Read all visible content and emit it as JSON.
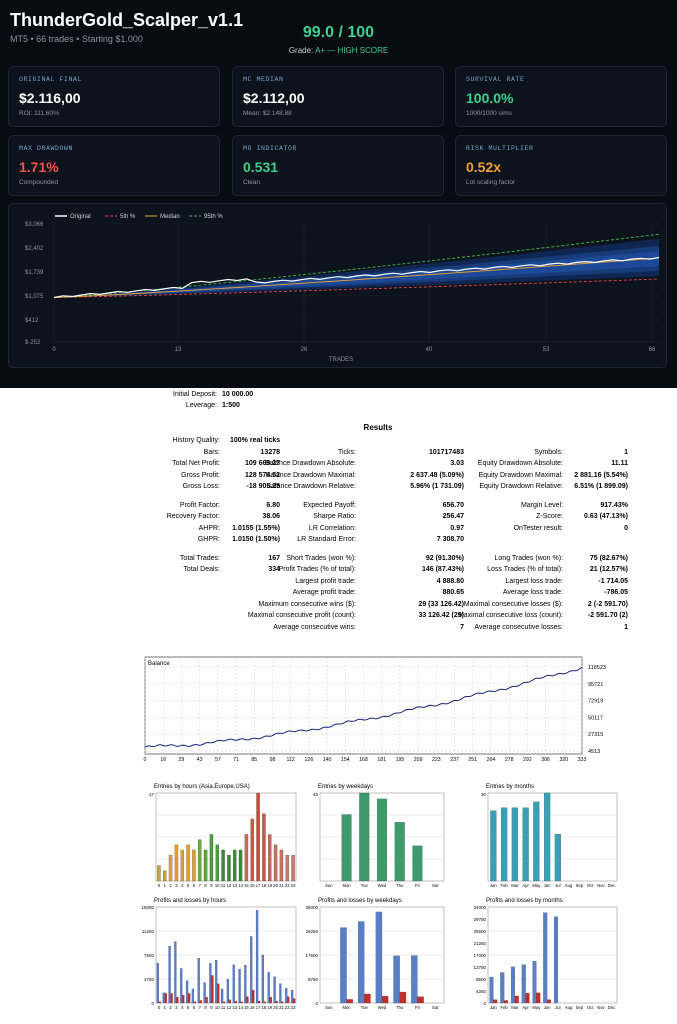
{
  "header": {
    "title": "ThunderGold_Scalper_v1.1",
    "subtitle": "MT5 • 66 trades • Starting $1.000",
    "score": "99.0 / 100",
    "grade_prefix": "Grade: ",
    "grade_value": "A+ — HIGH SCORE"
  },
  "cards": [
    {
      "label": "ORIGINAL FINAL",
      "value": "$2.116,00",
      "sub": "ROI: 111,60%",
      "color": "#ffffff"
    },
    {
      "label": "MC MEDIAN",
      "value": "$2.112,00",
      "sub": "Mean: $2.148,88",
      "color": "#ffffff"
    },
    {
      "label": "SURVIVAL RATE",
      "value": "100.0%",
      "sub": "1000/1000 sims",
      "color": "#3fcf8e"
    },
    {
      "label": "MAX DRAWDOWN",
      "value": "1.71%",
      "sub": "Compounded",
      "color": "#f85149"
    },
    {
      "label": "MG INDICATOR",
      "value": "0.531",
      "sub": "Clean",
      "color": "#3fcf8e"
    },
    {
      "label": "RISK MULTIPLIER",
      "value": "0.52x",
      "sub": "Lot scaling factor",
      "color": "#f0a030"
    }
  ],
  "mc_chart": {
    "legend": [
      "Original",
      "5th %",
      "Median",
      "95th %"
    ],
    "y_ticks": [
      "$3,066",
      "$2,402",
      "$1,739",
      "$1,075",
      "$412",
      "$-252"
    ],
    "x_ticks": [
      "0",
      "13",
      "26",
      "40",
      "53",
      "66"
    ],
    "xlabel": "TRADES",
    "colors": {
      "original": "#ffffff",
      "p5": "#e5484d",
      "median": "#f0a030",
      "p95": "#3fb950",
      "band": "#1f4e9e"
    }
  },
  "report": {
    "initial_deposit_label": "Initial Deposit:",
    "initial_deposit": "10 000.00",
    "leverage_label": "Leverage:",
    "leverage": "1:500",
    "results_title": "Results",
    "rows": [
      [
        "History Quality:",
        "100% real ticks",
        "",
        "",
        "",
        ""
      ],
      [
        "Bars:",
        "13278",
        "Ticks:",
        "101717483",
        "Symbols:",
        "1"
      ],
      [
        "Total Net Profit:",
        "109 669.27",
        "Balance Drawdown Absolute:",
        "3.03",
        "Equity Drawdown Absolute:",
        "11.11"
      ],
      [
        "Gross Profit:",
        "128 574.52",
        "Balance Drawdown Maximal:",
        "2 637.48 (5.09%)",
        "Equity Drawdown Maximal:",
        "2 881.16 (5.54%)"
      ],
      [
        "Gross Loss:",
        "-18 905.25",
        "Balance Drawdown Relative:",
        "5.96% (1 731.09)",
        "Equity Drawdown Relative:",
        "6.51% (1 899.09)"
      ],
      [
        "",
        "",
        "",
        "",
        "",
        ""
      ],
      [
        "Profit Factor:",
        "6.80",
        "Expected Payoff:",
        "656.70",
        "Margin Level:",
        "917.43%"
      ],
      [
        "Recovery Factor:",
        "38.06",
        "Sharpe Ratio:",
        "256.47",
        "Z-Score:",
        "0.63 (47.13%)"
      ],
      [
        "AHPR:",
        "1.0155 (1.55%)",
        "LR Correlation:",
        "0.97",
        "OnTester result:",
        "0"
      ],
      [
        "GHPR:",
        "1.0150 (1.50%)",
        "LR Standard Error:",
        "7 308.70",
        "",
        ""
      ],
      [
        "",
        "",
        "",
        "",
        "",
        ""
      ],
      [
        "Total Trades:",
        "167",
        "Short Trades (won %):",
        "92 (91.30%)",
        "Long Trades (won %):",
        "75 (82.67%)"
      ],
      [
        "Total Deals:",
        "334",
        "Profit Trades (% of total):",
        "146 (87.43%)",
        "Loss Trades (% of total):",
        "21 (12.57%)"
      ],
      [
        "",
        "",
        "Largest profit trade:",
        "4 888.80",
        "Largest loss trade:",
        "-1 714.05"
      ],
      [
        "",
        "",
        "Average profit trade:",
        "880.65",
        "Average loss trade:",
        "-786.05"
      ],
      [
        "",
        "",
        "Maximum consecutive wins ($):",
        "29 (33 126.42)",
        "Maximal consecutive losses ($):",
        "2 (-2 591.70)"
      ],
      [
        "",
        "",
        "Maximal consecutive profit (count):",
        "33 126.42 (29)",
        "Maximal consecutive loss (count):",
        "-2 591.70 (2)"
      ],
      [
        "",
        "",
        "Average consecutive wins:",
        "7",
        "Average consecutive losses:",
        "1"
      ]
    ]
  },
  "balance_chart": {
    "label": "Balance",
    "y_ticks": [
      "118523",
      "95721",
      "72919",
      "50117",
      "27315",
      "4513"
    ],
    "x_ticks": [
      "0",
      "16",
      "29",
      "43",
      "57",
      "71",
      "85",
      "98",
      "112",
      "126",
      "140",
      "154",
      "168",
      "181",
      "195",
      "209",
      "223",
      "237",
      "251",
      "264",
      "278",
      "292",
      "306",
      "320",
      "333"
    ]
  },
  "hist_charts": [
    {
      "title": "Entries by hours (Asia,Europe,USA)",
      "ymax_label": "17",
      "ticks": [
        "0",
        "1",
        "2",
        "3",
        "4",
        "5",
        "6",
        "7",
        "8",
        "9",
        "10",
        "11",
        "12",
        "13",
        "14",
        "15",
        "16",
        "17",
        "18",
        "19",
        "20",
        "21",
        "22",
        "23"
      ],
      "values": [
        3,
        2,
        5,
        7,
        6,
        7,
        6,
        8,
        6,
        9,
        7,
        6,
        5,
        6,
        6,
        9,
        12,
        17,
        13,
        9,
        7,
        6,
        5,
        5
      ]
    },
    {
      "title": "Entries by weekdays",
      "ymax_label": "45",
      "ticks": [
        "Sun",
        "Mon",
        "Tue",
        "Wed",
        "Thu",
        "Fri",
        "Sat"
      ],
      "values": [
        0,
        34,
        45,
        42,
        30,
        18,
        0
      ]
    },
    {
      "title": "Entries by months",
      "ymax_label": "30",
      "ticks": [
        "Jan",
        "Feb",
        "Mar",
        "Apr",
        "May",
        "Jun",
        "Jul",
        "Aug",
        "Sep",
        "Oct",
        "Nov",
        "Dec"
      ],
      "values": [
        24,
        25,
        25,
        25,
        27,
        30,
        16,
        0,
        0,
        0,
        0,
        0
      ]
    },
    {
      "title": "Profits and losses by hours",
      "ymax_label": "15000",
      "y_ticks": [
        "15000",
        "11250",
        "7500",
        "3750",
        "0"
      ],
      "ticks": [
        "0",
        "1",
        "2",
        "3",
        "4",
        "5",
        "6",
        "7",
        "8",
        "9",
        "10",
        "11",
        "12",
        "13",
        "14",
        "15",
        "16",
        "17",
        "18",
        "19",
        "20",
        "21",
        "22",
        "23"
      ],
      "profits": [
        6200,
        1600,
        8900,
        9600,
        5400,
        3500,
        2200,
        7000,
        3200,
        6200,
        6700,
        2200,
        3700,
        6000,
        5300,
        5900,
        10400,
        14500,
        7500,
        4800,
        4100,
        3000,
        2300,
        2000
      ],
      "losses": [
        200,
        1500,
        1500,
        900,
        1200,
        1500,
        200,
        400,
        900,
        4300,
        3000,
        200,
        500,
        300,
        200,
        1000,
        2000,
        300,
        200,
        900,
        300,
        200,
        1000,
        700
      ]
    },
    {
      "title": "Profits and losses by weekdays",
      "ymax_label": "35000",
      "y_ticks": [
        "35000",
        "26250",
        "17500",
        "8750",
        "0"
      ],
      "ticks": [
        "Sun",
        "Mon",
        "Tue",
        "Wed",
        "Thu",
        "Fri",
        "Sat"
      ],
      "profits": [
        0,
        27500,
        29700,
        33200,
        17200,
        17300,
        0
      ],
      "losses": [
        0,
        1300,
        3300,
        2500,
        4000,
        2300,
        0
      ]
    },
    {
      "title": "Profits and losses by months",
      "ymax_label": "34000",
      "y_ticks": [
        "34000",
        "29750",
        "25500",
        "21250",
        "17000",
        "12750",
        "8500",
        "4250",
        "0"
      ],
      "ticks": [
        "Jan",
        "Feb",
        "Mar",
        "Apr",
        "May",
        "Jun",
        "Jul",
        "Aug",
        "Sep",
        "Oct",
        "Nov",
        "Dec"
      ],
      "profits": [
        9200,
        10800,
        12800,
        13600,
        14800,
        32000,
        30600,
        0,
        0,
        0,
        0,
        0
      ],
      "losses": [
        1200,
        900,
        2500,
        3500,
        3600,
        1200,
        0,
        0,
        0,
        0,
        0,
        0
      ]
    }
  ]
}
